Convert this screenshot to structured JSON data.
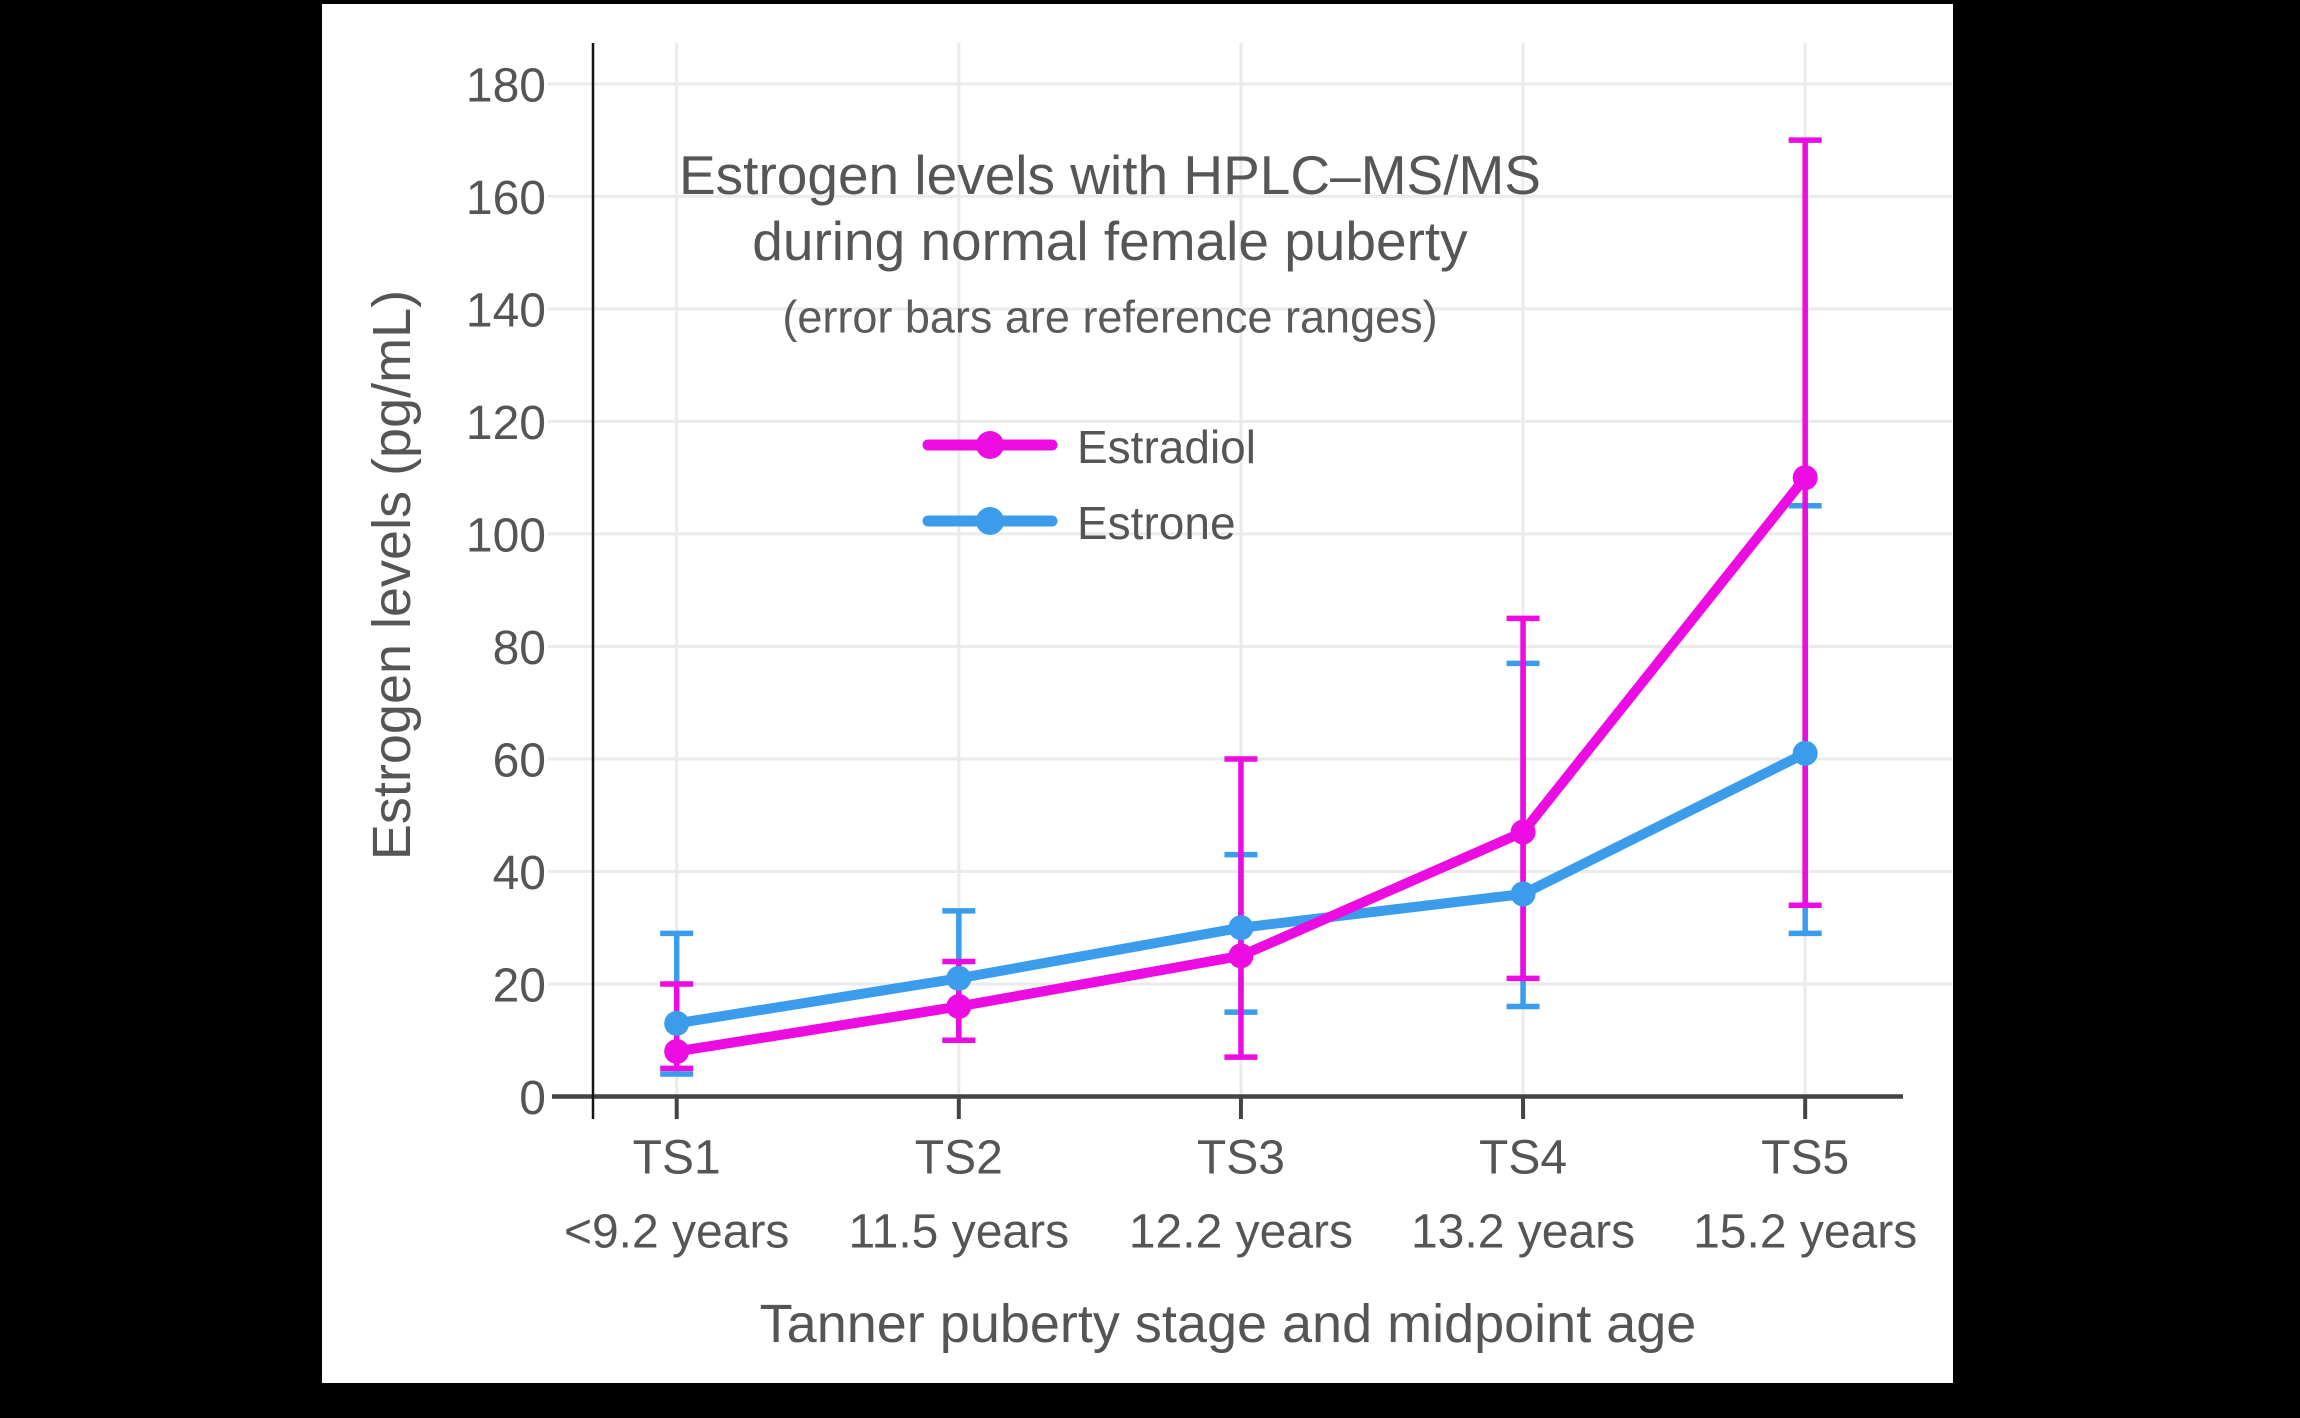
{
  "title": {
    "line1": "Estrogen levels with HPLC–MS/MS",
    "line2": "during normal female puberty",
    "subtitle": "(error bars are reference ranges)"
  },
  "legend": {
    "items": [
      {
        "label": "Estradiol",
        "color": "#ec0ce2"
      },
      {
        "label": "Estrone",
        "color": "#3b9cec"
      }
    ]
  },
  "axes": {
    "y_title": "Estrogen levels (pg/mL)",
    "x_title": "Tanner puberty stage and midpoint age",
    "y_ticks": [
      0,
      20,
      40,
      60,
      80,
      100,
      120,
      140,
      160,
      180
    ]
  },
  "colors": {
    "background": "#ffffff",
    "frame": "#000000",
    "gridline": "#ebebeb",
    "x_axis_line": "#444444",
    "y_axis_line": "#151515",
    "text": "#555555",
    "estradiol": "#ec0ce2",
    "estrone": "#3b9cec"
  },
  "chart_data": {
    "type": "line",
    "title": "Estrogen levels with HPLC–MS/MS during normal female puberty",
    "subtitle": "(error bars are reference ranges)",
    "xlabel": "Tanner puberty stage and midpoint age",
    "ylabel": "Estrogen levels (pg/mL)",
    "categories": [
      "TS1",
      "TS2",
      "TS3",
      "TS4",
      "TS5"
    ],
    "category_ages": [
      "<9.2 years",
      "11.5 years",
      "12.2 years",
      "13.2 years",
      "15.2 years"
    ],
    "ylim": [
      0,
      187
    ],
    "y_tick_step": 20,
    "grid": true,
    "legend_position": "inside-upper-center",
    "error_bar_meaning": "reference ranges",
    "series": [
      {
        "name": "Estradiol",
        "color": "#ec0ce2",
        "values": [
          8,
          16,
          25,
          47,
          110
        ],
        "error_low": [
          5,
          10,
          7,
          21,
          34
        ],
        "error_high": [
          20,
          24,
          60,
          85,
          170
        ]
      },
      {
        "name": "Estrone",
        "color": "#3b9cec",
        "values": [
          13,
          21,
          30,
          36,
          61
        ],
        "error_low": [
          4,
          10,
          15,
          16,
          29
        ],
        "error_high": [
          29,
          33,
          43,
          77,
          105
        ]
      }
    ]
  }
}
